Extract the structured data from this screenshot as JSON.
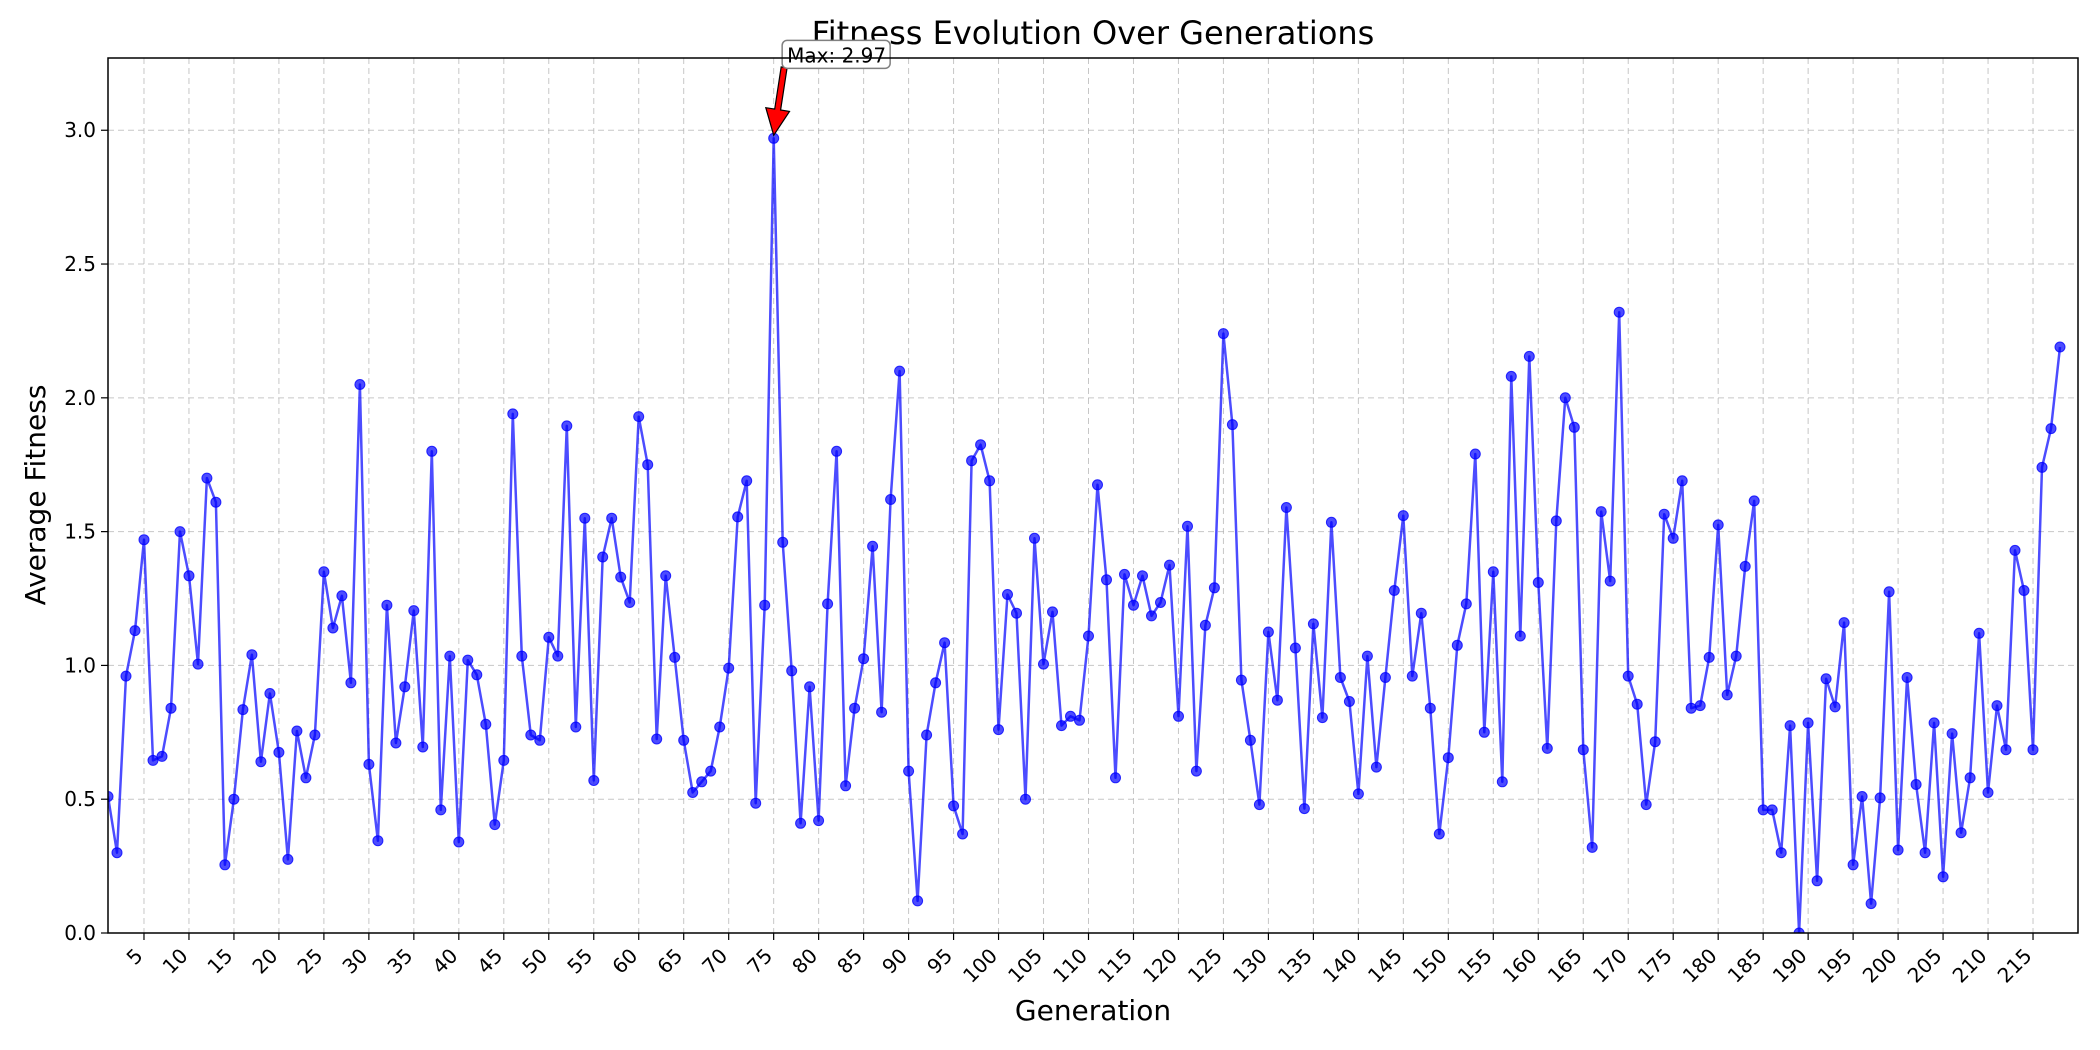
{
  "chart_data": {
    "type": "line",
    "title": "Fitness Evolution Over Generations",
    "xlabel": "Generation",
    "ylabel": "Average Fitness",
    "xlim": [
      1,
      220
    ],
    "ylim": [
      0,
      3.27
    ],
    "x_ticks": [
      5,
      10,
      15,
      20,
      25,
      30,
      35,
      40,
      45,
      50,
      55,
      60,
      65,
      70,
      75,
      80,
      85,
      90,
      95,
      100,
      105,
      110,
      115,
      120,
      125,
      130,
      135,
      140,
      145,
      150,
      155,
      160,
      165,
      170,
      175,
      180,
      185,
      190,
      195,
      200,
      205,
      210,
      215
    ],
    "y_ticks": [
      0.0,
      0.5,
      1.0,
      1.5,
      2.0,
      2.5,
      3.0
    ],
    "y_tick_labels": [
      "0.0",
      "0.5",
      "1.0",
      "1.5",
      "2.0",
      "2.5",
      "3.0"
    ],
    "grid": true,
    "series": [
      {
        "color": "#0000ff",
        "x_start": 1,
        "values": [
          0.51,
          0.3,
          0.96,
          1.13,
          1.47,
          0.645,
          0.66,
          0.84,
          1.5,
          1.335,
          1.005,
          1.7,
          1.61,
          0.255,
          0.5,
          0.835,
          1.04,
          0.64,
          0.895,
          0.675,
          0.275,
          0.755,
          0.58,
          0.74,
          1.35,
          1.14,
          1.26,
          0.935,
          2.05,
          0.63,
          0.345,
          1.225,
          0.71,
          0.92,
          1.205,
          0.695,
          1.8,
          0.46,
          1.035,
          0.34,
          1.02,
          0.965,
          0.78,
          0.405,
          0.645,
          1.94,
          1.035,
          0.74,
          0.72,
          1.105,
          1.035,
          1.895,
          0.77,
          1.55,
          0.57,
          1.405,
          1.55,
          1.33,
          1.235,
          1.93,
          1.75,
          0.725,
          1.335,
          1.03,
          0.72,
          0.525,
          0.565,
          0.605,
          0.77,
          0.99,
          1.555,
          1.69,
          0.485,
          1.225,
          2.97,
          1.46,
          0.98,
          0.41,
          0.92,
          0.42,
          1.23,
          1.8,
          0.55,
          0.84,
          1.025,
          1.445,
          0.825,
          1.62,
          2.1,
          0.605,
          0.12,
          0.74,
          0.935,
          1.085,
          0.475,
          0.37,
          1.765,
          1.825,
          1.69,
          0.76,
          1.265,
          1.195,
          0.5,
          1.475,
          1.005,
          1.2,
          0.775,
          0.81,
          0.795,
          1.11,
          1.675,
          1.32,
          0.58,
          1.34,
          1.225,
          1.335,
          1.185,
          1.235,
          1.375,
          0.81,
          1.52,
          0.605,
          1.15,
          1.29,
          2.24,
          1.9,
          0.945,
          0.72,
          0.48,
          1.125,
          0.87,
          1.59,
          1.065,
          0.465,
          1.155,
          0.805,
          1.535,
          0.955,
          0.865,
          0.52,
          1.035,
          0.62,
          0.955,
          1.28,
          1.56,
          0.96,
          1.195,
          0.84,
          0.37,
          0.655,
          1.075,
          1.23,
          1.79,
          0.75,
          1.35,
          0.565,
          2.08,
          1.11,
          2.155,
          1.31,
          0.69,
          1.54,
          2.0,
          1.89,
          0.685,
          0.32,
          1.575,
          1.315,
          2.32,
          0.96,
          0.855,
          0.48,
          0.715,
          1.565,
          1.475,
          1.69,
          0.84,
          0.85,
          1.03,
          1.525,
          0.89,
          1.035,
          1.37,
          1.615,
          0.46,
          0.46,
          0.3,
          0.775,
          0.0,
          0.785,
          0.195,
          0.95,
          0.845,
          1.16,
          0.255,
          0.51,
          0.11,
          0.505,
          1.275,
          0.31,
          0.955,
          0.555,
          0.3,
          0.785,
          0.21,
          0.745,
          0.375,
          0.58,
          1.12,
          0.525,
          0.85,
          0.685,
          1.43,
          1.28,
          0.685,
          1.74,
          1.885,
          2.19
        ]
      }
    ],
    "annotation": {
      "text": "Max: 2.97",
      "x": 75,
      "y": 2.97,
      "text_x": 76.5,
      "text_y": 3.28,
      "arrow_color": "#ff0000"
    }
  }
}
